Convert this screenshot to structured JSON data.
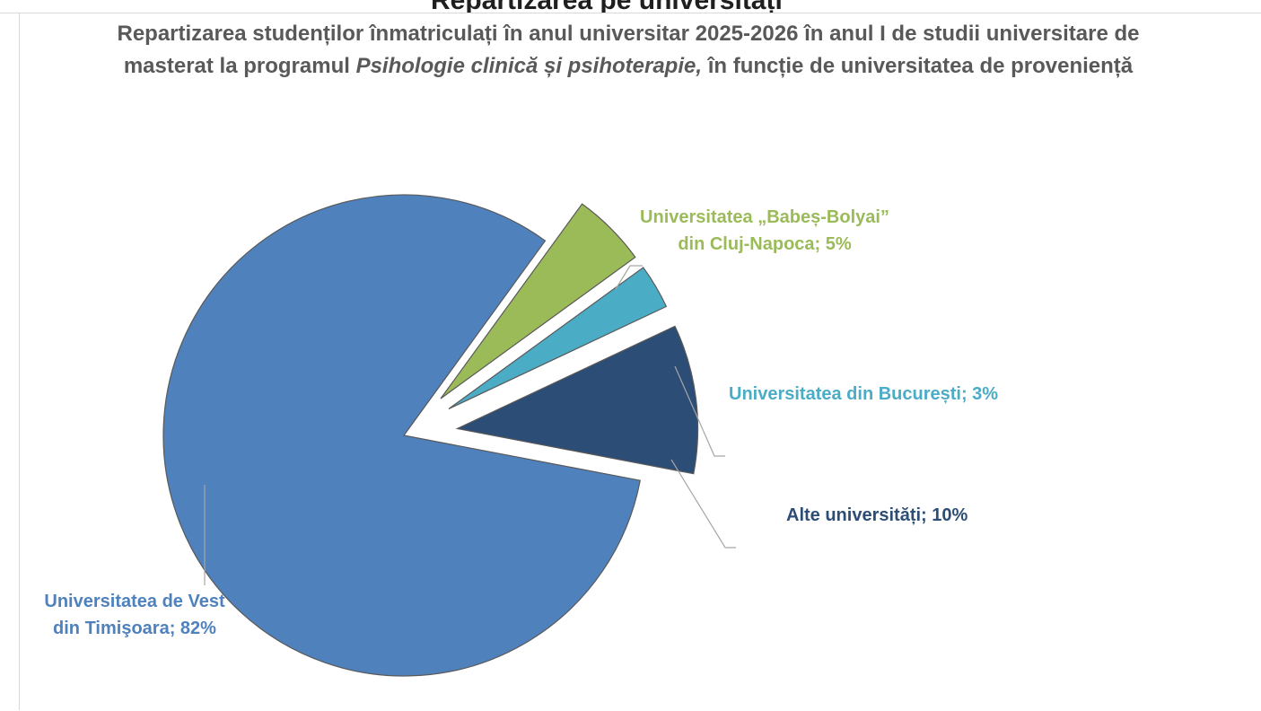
{
  "top_cut_text": "Repartizarea pe universități",
  "chart_data": {
    "type": "pie",
    "title_parts": [
      "Repartizarea studenților înmatriculați în anul universitar 2025-2026 în anul I de studii universitare de masterat la programul ",
      "Psihologie clinică și psihoterapie,",
      " în funcție de universitatea de proveniență"
    ],
    "slices": [
      {
        "name": "Universitatea de Vest din Timişoara",
        "label_lines": [
          "Universitatea de Vest",
          "din Timişoara; 82%"
        ],
        "value": 82,
        "color": "#4f81bd",
        "exploded": true
      },
      {
        "name": "Universitatea „Babeș-Bolyai” din Cluj-Napoca",
        "label_lines": [
          "Universitatea „Babeș-Bolyai”",
          "din Cluj-Napoca; 5%"
        ],
        "value": 5,
        "color": "#9bbb59",
        "exploded": true
      },
      {
        "name": "Universitatea din București",
        "label_lines": [
          "Universitatea din București; 3%"
        ],
        "value": 3,
        "color": "#4bacc6",
        "exploded": true
      },
      {
        "name": "Alte universități",
        "label_lines": [
          "Alte universități; 10%"
        ],
        "value": 10,
        "color": "#2c4d75",
        "exploded": true
      }
    ],
    "legend": "none",
    "data_labels": "outside-with-leader-lines"
  }
}
